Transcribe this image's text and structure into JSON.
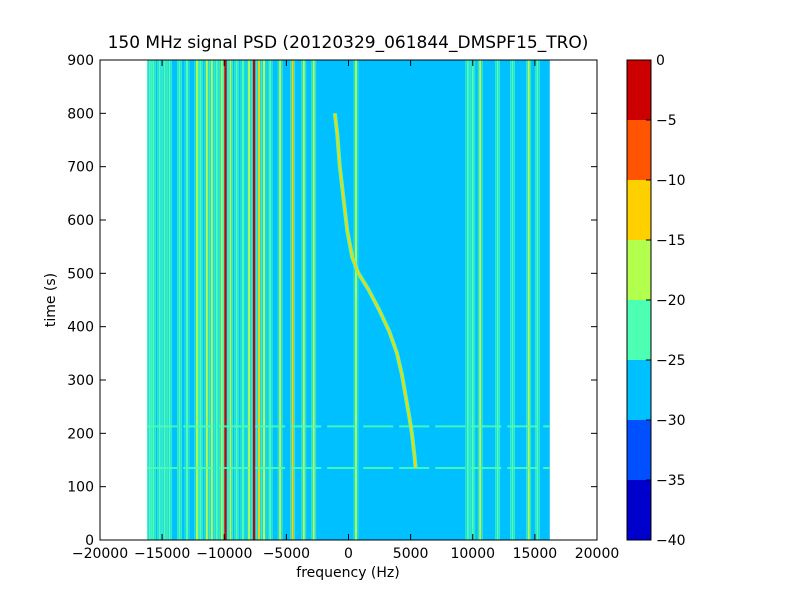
{
  "chart_data": {
    "type": "heatmap",
    "title": "150 MHz signal PSD (20120329_061844_DMSPF15_TRO)",
    "xlabel": "frequency (Hz)",
    "ylabel": "time (s)",
    "xlim": [
      -20000,
      20000
    ],
    "ylim": [
      0,
      900
    ],
    "xticks": [
      -20000,
      -15000,
      -10000,
      -5000,
      0,
      5000,
      10000,
      15000,
      20000
    ],
    "xtick_labels": [
      "−20000",
      "−15000",
      "−10000",
      "−5000",
      "0",
      "5000",
      "10000",
      "15000",
      "20000"
    ],
    "yticks": [
      0,
      100,
      200,
      300,
      400,
      500,
      600,
      700,
      800,
      900
    ],
    "ytick_labels": [
      "0",
      "100",
      "200",
      "300",
      "400",
      "500",
      "600",
      "700",
      "800",
      "900"
    ],
    "data_extent": {
      "x": [
        -16200,
        16200
      ],
      "y": [
        0,
        900
      ]
    },
    "background_level": -27.5,
    "colorbar": {
      "levels": [
        -40,
        -35,
        -30,
        -25,
        -20,
        -15,
        -10,
        -5,
        0
      ],
      "tick_labels": [
        "−40",
        "−35",
        "−30",
        "−25",
        "−20",
        "−15",
        "−10",
        "−5",
        "0"
      ],
      "colors": [
        "#0000cd",
        "#0050ff",
        "#00c0ff",
        "#4dffb2",
        "#b2ff4d",
        "#ffd000",
        "#ff5500",
        "#cd0000"
      ]
    },
    "vertical_lines": [
      {
        "f": -16000,
        "level": -22
      },
      {
        "f": -15700,
        "level": -22
      },
      {
        "f": -15200,
        "level": -22
      },
      {
        "f": -14800,
        "level": -22
      },
      {
        "f": -14400,
        "level": -22
      },
      {
        "f": -13600,
        "level": -22
      },
      {
        "f": -13000,
        "level": -22
      },
      {
        "f": -12200,
        "level": -17
      },
      {
        "f": -11900,
        "level": -22
      },
      {
        "f": -11400,
        "level": -17
      },
      {
        "f": -11000,
        "level": -17
      },
      {
        "f": -10600,
        "level": -22
      },
      {
        "f": -10200,
        "level": -17
      },
      {
        "f": -9900,
        "level": -2
      },
      {
        "f": -9500,
        "level": -17
      },
      {
        "f": -9000,
        "level": -22
      },
      {
        "f": -8500,
        "level": -22
      },
      {
        "f": -8000,
        "level": -17
      },
      {
        "f": -7600,
        "level": -2
      },
      {
        "f": -7200,
        "level": -12
      },
      {
        "f": -6800,
        "level": -17
      },
      {
        "f": -6300,
        "level": -22
      },
      {
        "f": -5500,
        "level": -17
      },
      {
        "f": -4500,
        "level": -12
      },
      {
        "f": -3600,
        "level": -17
      },
      {
        "f": -2800,
        "level": -17
      },
      {
        "f": 600,
        "level": -17
      },
      {
        "f": 9600,
        "level": -22
      },
      {
        "f": 10000,
        "level": -22
      },
      {
        "f": 10600,
        "level": -17
      },
      {
        "f": 12000,
        "level": -22
      },
      {
        "f": 13200,
        "level": -22
      },
      {
        "f": 14500,
        "level": -17
      },
      {
        "f": 15200,
        "level": -22
      }
    ],
    "doppler_trace": {
      "level": -15,
      "points": [
        [
          -1100,
          800
        ],
        [
          -900,
          760
        ],
        [
          -700,
          700
        ],
        [
          -400,
          640
        ],
        [
          -100,
          580
        ],
        [
          300,
          530
        ],
        [
          800,
          500
        ],
        [
          1600,
          470
        ],
        [
          2500,
          430
        ],
        [
          3300,
          390
        ],
        [
          3900,
          350
        ],
        [
          4300,
          310
        ],
        [
          4600,
          270
        ],
        [
          4900,
          230
        ],
        [
          5100,
          200
        ],
        [
          5300,
          160
        ],
        [
          5400,
          135
        ]
      ]
    },
    "horizontal_lines": [
      {
        "t": 135,
        "level": -22
      },
      {
        "t": 213,
        "level": -22
      }
    ]
  }
}
